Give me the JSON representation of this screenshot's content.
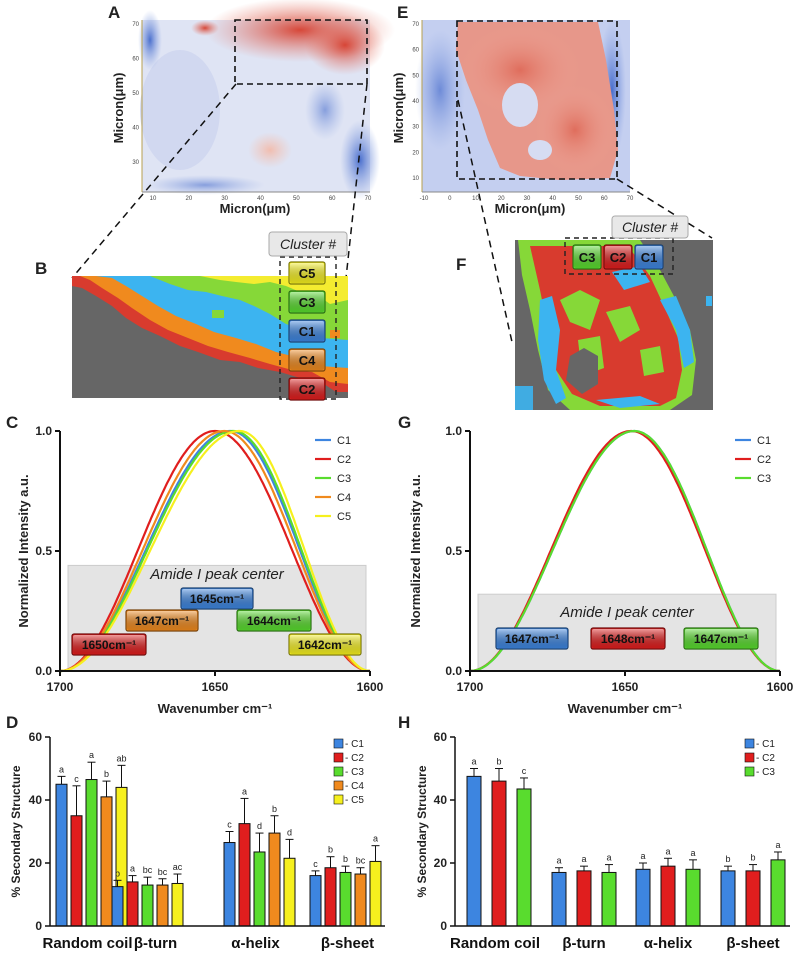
{
  "colors": {
    "C1": "#3d85e0",
    "C2": "#e01e1e",
    "C3": "#59dc2e",
    "C4": "#f08a1e",
    "C5": "#f6f01e",
    "map_gray": "#666666",
    "map_red": "#d83b2e",
    "map_orange": "#f08a1e",
    "map_cyan": "#3cb4f0",
    "map_green": "#86d838",
    "map_yellow": "#f4ec30"
  },
  "panels": {
    "A": {
      "label": "A",
      "xlabel": "Micron(μm)",
      "ylabel": "Micron(μm)",
      "xticks": [
        "10",
        "20",
        "30",
        "40",
        "50",
        "60",
        "70"
      ],
      "yticks": [
        "70",
        "60",
        "50",
        "40",
        "30"
      ]
    },
    "B": {
      "label": "B",
      "cluster_title": "Cluster #",
      "clusters": [
        "C5",
        "C3",
        "C1",
        "C4",
        "C2"
      ]
    },
    "E": {
      "label": "E",
      "xlabel": "Micron(μm)",
      "ylabel": "Micron(μm)",
      "xticks": [
        "-10",
        "0",
        "10",
        "20",
        "30",
        "40",
        "50",
        "60",
        "70"
      ],
      "yticks": [
        "70",
        "60",
        "50",
        "40",
        "30",
        "20",
        "10"
      ]
    },
    "F": {
      "label": "F",
      "cluster_title": "Cluster #",
      "clusters": [
        "C3",
        "C2",
        "C1"
      ]
    },
    "C": {
      "label": "C"
    },
    "G": {
      "label": "G"
    },
    "D": {
      "label": "D"
    },
    "H": {
      "label": "H"
    }
  },
  "chart_data": [
    {
      "panel": "C",
      "type": "line",
      "xlabel": "Wavenumber cm⁻¹",
      "ylabel": "Normalized Intensity a.u.",
      "xlim": [
        1700,
        1600
      ],
      "ylim": [
        0,
        1.0
      ],
      "xticks": [
        "1700",
        "1650",
        "1600"
      ],
      "yticks": [
        "0.0",
        "0.5",
        "1.0"
      ],
      "legend_position": "top-right",
      "series": [
        {
          "name": "C1",
          "peak_center": 1645
        },
        {
          "name": "C2",
          "peak_center": 1650
        },
        {
          "name": "C3",
          "peak_center": 1644
        },
        {
          "name": "C4",
          "peak_center": 1647
        },
        {
          "name": "C5",
          "peak_center": 1642
        }
      ],
      "annotation_title": "Amide I peak center",
      "peak_labels": [
        {
          "series": "C2",
          "text": "1650cm⁻¹"
        },
        {
          "series": "C4",
          "text": "1647cm⁻¹"
        },
        {
          "series": "C1",
          "text": "1645cm⁻¹"
        },
        {
          "series": "C3",
          "text": "1644cm⁻¹"
        },
        {
          "series": "C5",
          "text": "1642cm⁻¹"
        }
      ]
    },
    {
      "panel": "G",
      "type": "line",
      "xlabel": "Wavenumber cm⁻¹",
      "ylabel": "Normalized Intensity a.u.",
      "xlim": [
        1700,
        1600
      ],
      "ylim": [
        0,
        1.0
      ],
      "xticks": [
        "1700",
        "1650",
        "1600"
      ],
      "yticks": [
        "0.0",
        "0.5",
        "1.0"
      ],
      "legend_position": "top-right",
      "series": [
        {
          "name": "C1",
          "peak_center": 1647
        },
        {
          "name": "C2",
          "peak_center": 1648
        },
        {
          "name": "C3",
          "peak_center": 1647
        }
      ],
      "annotation_title": "Amide I peak center",
      "peak_labels": [
        {
          "series": "C1",
          "text": "1647cm⁻¹"
        },
        {
          "series": "C2",
          "text": "1648cm⁻¹"
        },
        {
          "series": "C3",
          "text": "1647cm⁻¹"
        }
      ]
    },
    {
      "panel": "D",
      "type": "bar",
      "ylabel": "% Secondary Structure",
      "ylim": [
        0,
        60
      ],
      "yticks": [
        "0",
        "20",
        "40",
        "60"
      ],
      "categories": [
        "Random coil",
        "β-turn",
        "α-helix",
        "β-sheet"
      ],
      "legend_position": "top-right",
      "series": [
        {
          "name": "- C1",
          "key": "C1",
          "values": [
            45,
            12.5,
            26.5,
            16
          ],
          "errors": [
            2.5,
            2,
            3.5,
            1.5
          ],
          "sig": [
            "a",
            "b",
            "c",
            "c"
          ]
        },
        {
          "name": "- C2",
          "key": "C2",
          "values": [
            35,
            14,
            32.5,
            18.5
          ],
          "errors": [
            9.5,
            2,
            8,
            3.5
          ],
          "sig": [
            "c",
            "a",
            "a",
            "b"
          ]
        },
        {
          "name": "- C3",
          "key": "C3",
          "values": [
            46.5,
            13,
            23.5,
            17
          ],
          "errors": [
            5.5,
            2.5,
            6,
            2
          ],
          "sig": [
            "a",
            "bc",
            "d",
            "b"
          ]
        },
        {
          "name": "- C4",
          "key": "C4",
          "values": [
            41,
            13,
            29.5,
            16.5
          ],
          "errors": [
            5,
            2,
            5.5,
            2
          ],
          "sig": [
            "b",
            "bc",
            "b",
            "bc"
          ]
        },
        {
          "name": "- C5",
          "key": "C5",
          "values": [
            44,
            13.5,
            21.5,
            20.5
          ],
          "errors": [
            7,
            3,
            6,
            5
          ],
          "sig": [
            "ab",
            "ac",
            "d",
            "a"
          ]
        }
      ]
    },
    {
      "panel": "H",
      "type": "bar",
      "ylabel": "% Secondary Structure",
      "ylim": [
        0,
        60
      ],
      "yticks": [
        "0",
        "20",
        "40",
        "60"
      ],
      "categories": [
        "Random coil",
        "β-turn",
        "α-helix",
        "β-sheet"
      ],
      "legend_position": "top-right",
      "series": [
        {
          "name": "- C1",
          "key": "C1",
          "values": [
            47.5,
            17,
            18,
            17.5
          ],
          "errors": [
            2.5,
            1.5,
            2,
            1.5
          ],
          "sig": [
            "a",
            "a",
            "a",
            "b"
          ]
        },
        {
          "name": "- C2",
          "key": "C2",
          "values": [
            46,
            17.5,
            19,
            17.5
          ],
          "errors": [
            4,
            1.5,
            2.5,
            2
          ],
          "sig": [
            "b",
            "a",
            "a",
            "b"
          ]
        },
        {
          "name": "- C3",
          "key": "C3",
          "values": [
            43.5,
            17,
            18,
            21
          ],
          "errors": [
            3.5,
            2.5,
            3,
            2.5
          ],
          "sig": [
            "c",
            "a",
            "a",
            "a"
          ]
        }
      ]
    }
  ]
}
